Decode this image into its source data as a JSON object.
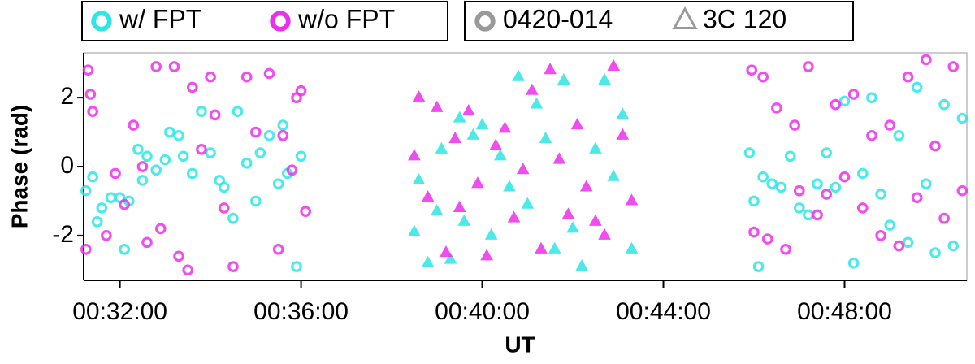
{
  "chart_data": {
    "type": "scatter",
    "x_label": "UT",
    "y_label": "Phase (rad)",
    "xlim": [
      31.2,
      50.7
    ],
    "ylim": [
      -3.3,
      3.3
    ],
    "xticks": [
      {
        "value": 32,
        "label": "00:32:00"
      },
      {
        "value": 36,
        "label": "00:36:00"
      },
      {
        "value": 40,
        "label": "00:40:00"
      },
      {
        "value": 44,
        "label": "00:44:00"
      },
      {
        "value": 48,
        "label": "00:48:00"
      }
    ],
    "yticks": [
      -2,
      0,
      2
    ],
    "color_legend": [
      {
        "name": "w/ FPT",
        "color": "#2ee6e6"
      },
      {
        "name": "w/o FPT",
        "color": "#ee2eee"
      }
    ],
    "marker_legend": [
      {
        "name": "0420-014",
        "marker": "circle"
      },
      {
        "name": "3C 120",
        "marker": "triangle"
      }
    ],
    "series": [
      {
        "color_group": 0,
        "marker_group": 0,
        "x": [
          31.25,
          31.4,
          31.5,
          31.6,
          31.8,
          32.0,
          32.1,
          32.2,
          32.4,
          32.5,
          32.6,
          32.8,
          33.0,
          33.1,
          33.3,
          33.4,
          33.6,
          33.8,
          34.0,
          34.2,
          34.3,
          34.5,
          34.6,
          34.8,
          35.0,
          35.1,
          35.3,
          35.5,
          35.6,
          35.7,
          35.9,
          36.0
        ],
        "values": [
          -0.7,
          -0.3,
          -1.6,
          -1.2,
          -0.9,
          -0.9,
          -2.4,
          -1.0,
          0.5,
          -0.4,
          0.3,
          -0.1,
          0.2,
          1.0,
          0.9,
          0.3,
          -0.2,
          1.6,
          0.4,
          -0.4,
          -0.6,
          -1.5,
          1.6,
          0.1,
          -1.0,
          0.4,
          0.9,
          -0.5,
          1.2,
          -0.2,
          -2.9,
          0.3
        ]
      },
      {
        "color_group": 1,
        "marker_group": 0,
        "x": [
          31.3,
          31.25,
          31.4,
          31.35,
          31.7,
          31.9,
          32.1,
          32.3,
          32.5,
          32.6,
          32.8,
          32.9,
          33.2,
          33.3,
          33.5,
          33.6,
          33.8,
          34.0,
          34.1,
          34.3,
          34.5,
          34.8,
          35.0,
          35.3,
          35.5,
          35.6,
          35.8,
          35.9,
          36.0,
          36.1
        ],
        "values": [
          2.8,
          -2.4,
          1.6,
          2.1,
          -2.0,
          -0.2,
          -1.1,
          1.2,
          0.0,
          -2.2,
          2.9,
          -1.8,
          2.9,
          -2.6,
          -3.0,
          2.3,
          0.5,
          2.6,
          1.5,
          -1.2,
          -2.9,
          2.6,
          1.0,
          2.7,
          -2.4,
          0.9,
          -0.1,
          2.0,
          2.2,
          -1.3
        ]
      },
      {
        "color_group": 0,
        "marker_group": 1,
        "x": [
          38.5,
          38.6,
          38.8,
          39.0,
          39.1,
          39.3,
          39.5,
          39.6,
          39.8,
          40.0,
          40.2,
          40.4,
          40.6,
          40.8,
          41.0,
          41.2,
          41.4,
          41.6,
          41.8,
          42.0,
          42.2,
          42.5,
          42.7,
          42.9,
          43.1,
          43.3
        ],
        "values": [
          -1.9,
          -0.4,
          -2.8,
          -1.3,
          0.5,
          -2.7,
          1.4,
          -1.6,
          0.9,
          1.2,
          -2.0,
          0.3,
          -0.6,
          2.6,
          -1.1,
          1.8,
          0.8,
          -2.4,
          2.5,
          -1.8,
          -2.9,
          0.5,
          2.5,
          -0.3,
          1.5,
          -2.4
        ]
      },
      {
        "color_group": 1,
        "marker_group": 1,
        "x": [
          38.5,
          38.6,
          38.8,
          39.0,
          39.2,
          39.4,
          39.5,
          39.7,
          39.9,
          40.1,
          40.3,
          40.5,
          40.7,
          40.9,
          41.1,
          41.3,
          41.5,
          41.7,
          41.9,
          42.1,
          42.3,
          42.5,
          42.7,
          42.9,
          43.1,
          43.3
        ],
        "values": [
          0.3,
          2.0,
          -0.9,
          1.7,
          -2.5,
          0.8,
          -1.2,
          1.6,
          -0.5,
          -2.6,
          0.6,
          1.1,
          -1.5,
          -0.1,
          2.2,
          -2.4,
          2.8,
          0.2,
          -1.4,
          1.2,
          -0.6,
          -1.6,
          -2.0,
          2.9,
          0.9,
          -1.0
        ]
      },
      {
        "color_group": 0,
        "marker_group": 0,
        "x": [
          45.9,
          46.0,
          46.1,
          46.2,
          46.4,
          46.6,
          46.8,
          47.0,
          47.2,
          47.4,
          47.6,
          47.8,
          48.0,
          48.2,
          48.4,
          48.6,
          48.8,
          49.0,
          49.2,
          49.4,
          49.6,
          49.8,
          50.0,
          50.2,
          50.4,
          50.6
        ],
        "values": [
          0.4,
          -1.0,
          -2.9,
          -0.3,
          -0.5,
          -0.6,
          0.3,
          -1.2,
          -1.4,
          -0.5,
          0.4,
          -0.6,
          1.9,
          -2.8,
          -0.2,
          2.0,
          -0.8,
          -1.7,
          0.9,
          -2.2,
          2.3,
          -0.5,
          -2.5,
          1.8,
          -2.3,
          1.4
        ]
      },
      {
        "color_group": 1,
        "marker_group": 0,
        "x": [
          45.95,
          46.0,
          46.2,
          46.3,
          46.5,
          46.7,
          46.9,
          47.0,
          47.2,
          47.4,
          47.6,
          47.8,
          48.0,
          48.2,
          48.4,
          48.6,
          48.8,
          49.0,
          49.2,
          49.4,
          49.6,
          49.8,
          50.0,
          50.2,
          50.4,
          50.6
        ],
        "values": [
          2.8,
          -1.9,
          2.6,
          -2.1,
          1.7,
          -2.4,
          1.2,
          -0.7,
          2.9,
          -1.4,
          -0.8,
          1.8,
          -0.3,
          2.1,
          -1.2,
          0.9,
          -2.0,
          1.2,
          -2.3,
          2.6,
          -0.9,
          3.1,
          0.6,
          -1.5,
          2.9,
          -0.7
        ]
      }
    ]
  }
}
